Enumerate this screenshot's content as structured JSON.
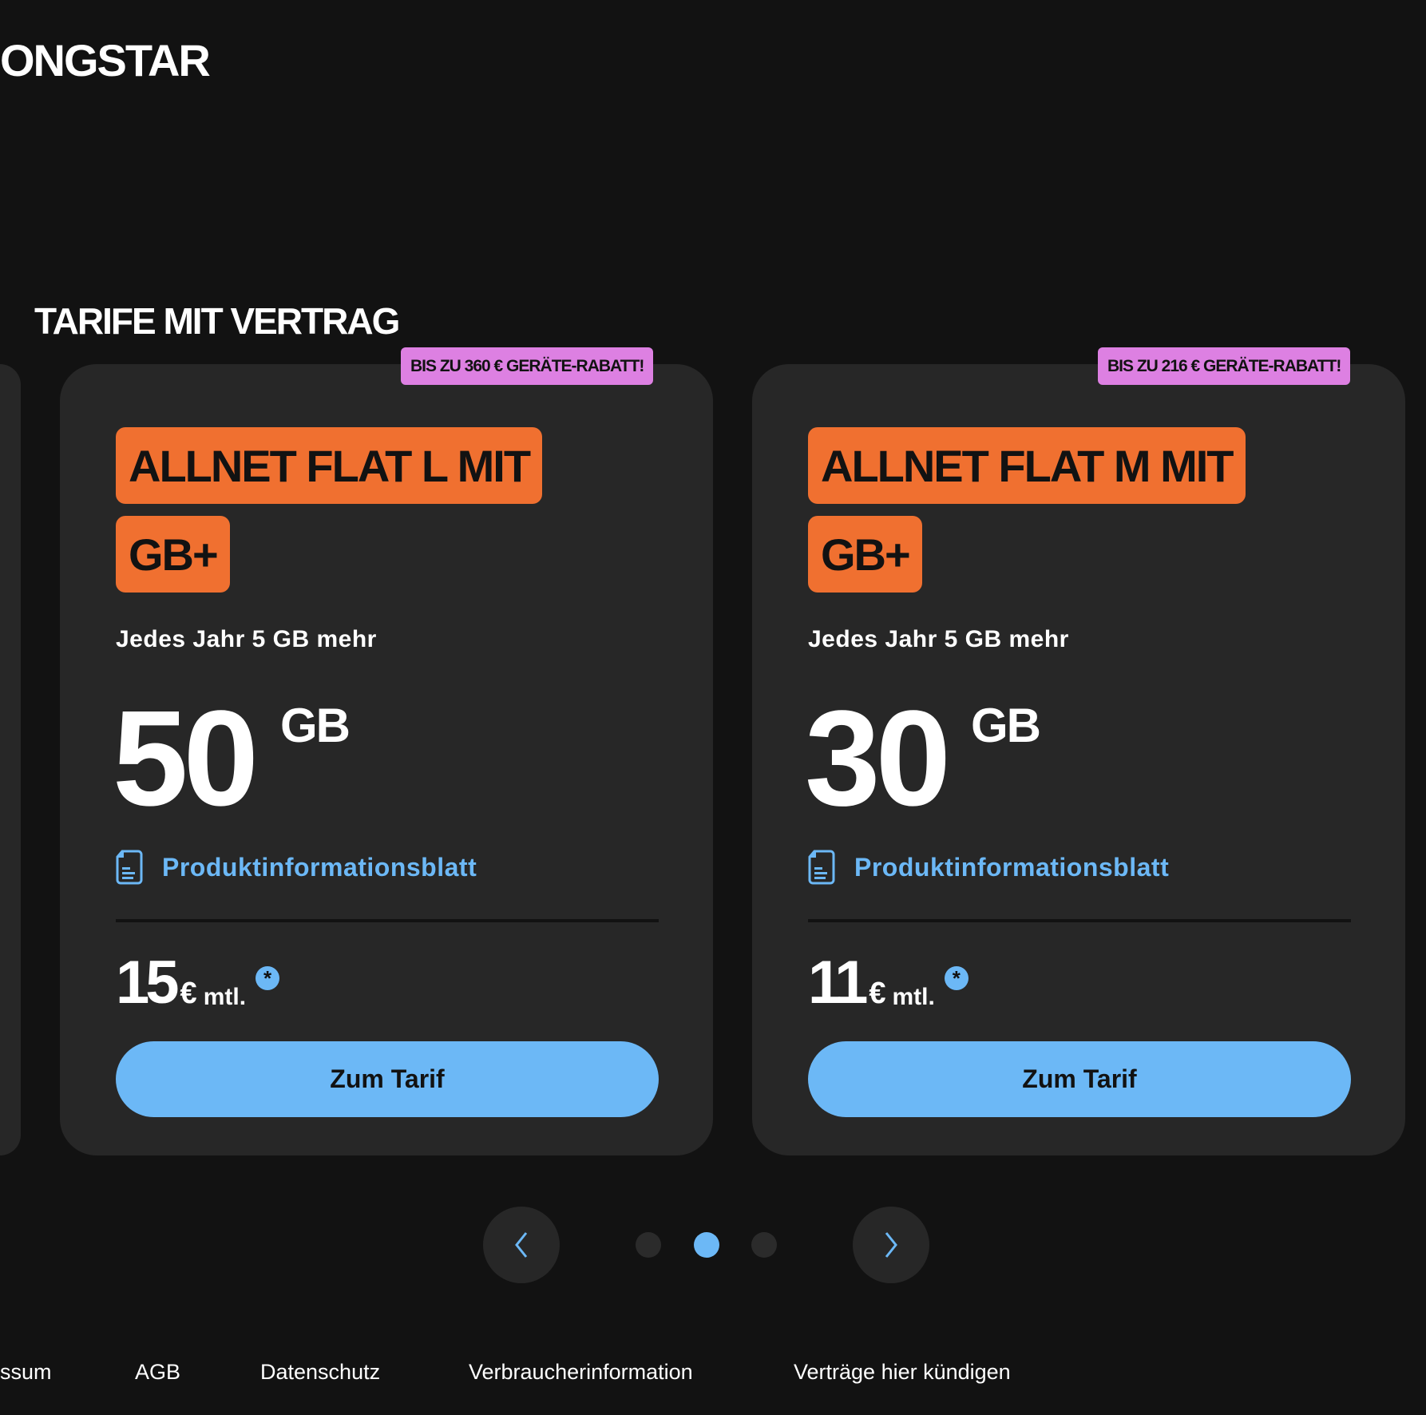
{
  "header": {
    "logo": "ONGSTAR"
  },
  "section_title": "TARIFE MIT VERTRAG",
  "cards": [
    {
      "badge": "BIS ZU 360 € GERÄTE-RABATT!",
      "name_line1": "ALLNET FLAT L MIT",
      "name_line2": "GB+",
      "subtitle": "Jedes Jahr 5 GB mehr",
      "data_amount": "50",
      "data_unit": "GB",
      "pib_label": "Produktinformationsblatt",
      "price": "15",
      "currency": "€",
      "period": "mtl.",
      "footnote": "*",
      "cta": "Zum Tarif"
    },
    {
      "badge": "BIS ZU 216 € GERÄTE-RABATT!",
      "name_line1": "ALLNET FLAT M MIT",
      "name_line2": "GB+",
      "subtitle": "Jedes Jahr 5 GB mehr",
      "data_amount": "30",
      "data_unit": "GB",
      "pib_label": "Produktinformationsblatt",
      "price": "11",
      "currency": "€",
      "period": "mtl.",
      "footnote": "*",
      "cta": "Zum Tarif"
    }
  ],
  "carousel": {
    "pages": 3,
    "active_page": 2,
    "prev_icon": "chevron-left-icon",
    "next_icon": "chevron-right-icon"
  },
  "footer": {
    "links": [
      "ssum",
      "AGB",
      "Datenschutz",
      "Verbraucherinformation",
      "Verträge hier kündigen"
    ]
  },
  "colors": {
    "background": "#121212",
    "card": "#272727",
    "accent_orange": "#f07030",
    "badge_pink": "#dd80e2",
    "accent_blue": "#6cb8f6"
  }
}
